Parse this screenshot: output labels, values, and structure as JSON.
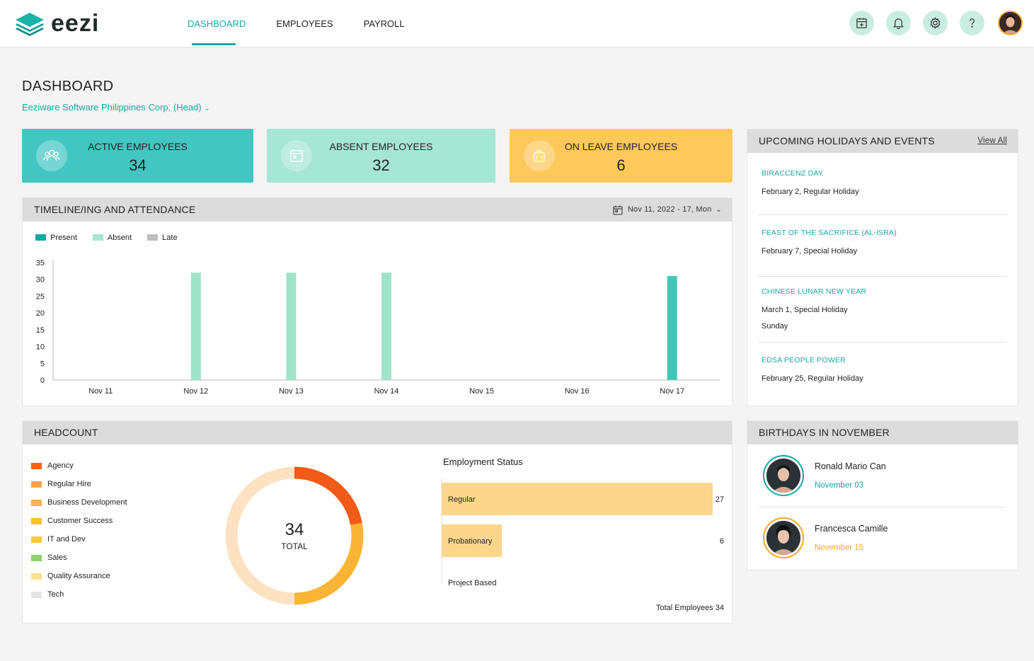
{
  "app": {
    "brand": "eezi"
  },
  "nav": {
    "items": [
      {
        "label": "DASHBOARD",
        "active": true
      },
      {
        "label": "EMPLOYEES",
        "active": false
      },
      {
        "label": "PAYROLL",
        "active": false
      }
    ]
  },
  "toolbar": {
    "icons": [
      "calendar-plus-icon",
      "bell-icon",
      "gear-icon",
      "help-icon",
      "user-avatar"
    ]
  },
  "page": {
    "title": "DASHBOARD",
    "company": "Eeziware Software Philippines Corp, (Head)"
  },
  "stats": [
    {
      "label": "ACTIVE EMPLOYEES",
      "value": "34",
      "color": "#43c6c2",
      "icon": "people-icon"
    },
    {
      "label": "ABSENT EMPLOYEES",
      "value": "32",
      "color": "#a6e6d4",
      "icon": "calendar-icon"
    },
    {
      "label": "ON LEAVE EMPLOYEES",
      "value": "6",
      "color": "#ffc85a",
      "icon": "luggage-icon"
    }
  ],
  "timeline": {
    "title": "TIMELINE/ING AND ATTENDANCE",
    "date_range": "Nov 11, 2022 - 17, Mon"
  },
  "chart_data": {
    "type": "bar",
    "categories": [
      "Nov 11",
      "Nov 12",
      "Nov 13",
      "Nov 14",
      "Nov 15",
      "Nov 16",
      "Nov 17"
    ],
    "series": [
      {
        "name": "Present",
        "color": "#43c6b8",
        "values": [
          0,
          0,
          0,
          0,
          0,
          0,
          31
        ]
      },
      {
        "name": "Absent",
        "color": "#9ee3ca",
        "values": [
          0,
          32,
          32,
          32,
          0,
          0,
          0
        ]
      },
      {
        "name": "Late",
        "color": "#bdbdbd",
        "values": [
          0,
          0,
          0,
          0,
          0,
          0,
          0
        ]
      }
    ],
    "yticks": [
      "35",
      "30",
      "25",
      "20",
      "15",
      "10",
      "5",
      "0"
    ],
    "ylim": [
      0,
      35
    ],
    "legend": "top-left"
  },
  "holidays": {
    "title": "UPCOMING HOLIDAYS AND EVENTS",
    "view_all": "View All",
    "items": [
      {
        "name": "BIRACCENZ DAY",
        "date": "February 2, Regular Holiday",
        "extra": ""
      },
      {
        "name": "FEAST OF THE SACRIFICE (AL-ISRA)",
        "date": "February 7, Special Holiday",
        "extra": ""
      },
      {
        "name": "CHINESE LUNAR NEW YEAR",
        "date": "March 1, Special Holiday",
        "extra": "Sunday"
      },
      {
        "name": "EDSA PEOPLE POWER",
        "date": "February 25, Regular Holiday",
        "extra": ""
      }
    ]
  },
  "headcount": {
    "title": "HEADCOUNT",
    "total_value": "34",
    "total_label": "TOTAL",
    "legend": [
      {
        "label": "Agency",
        "color": "#f4621e"
      },
      {
        "label": "Regular Hire",
        "color": "#f7a24a"
      },
      {
        "label": "Business Development",
        "color": "#f8b54a"
      },
      {
        "label": "Customer Success",
        "color": "#f9be3a"
      },
      {
        "label": "IT and Dev",
        "color": "#ffc93c"
      },
      {
        "label": "Sales",
        "color": "#8fd16c"
      },
      {
        "label": "Quality Assurance",
        "color": "#fbe08e"
      },
      {
        "label": "Tech",
        "color": "#e4e4e4"
      }
    ],
    "donut": [
      {
        "fraction": 0.22,
        "color": "#f25a17"
      },
      {
        "fraction": 0.28,
        "color": "#fbb536"
      },
      {
        "fraction": 0.5,
        "color": "#fde2c2"
      }
    ]
  },
  "employment_status": {
    "title": "Employment Status",
    "bars": [
      {
        "label": "Regular",
        "value": 27,
        "color": "#fcd68a"
      },
      {
        "label": "Probationary",
        "value": 6,
        "color": "#fcd68a"
      },
      {
        "label": "Project Based",
        "value": 0,
        "color": "#fcd68a"
      }
    ],
    "total_label": "Total Employees 34"
  },
  "birthdays": {
    "title": "BIRTHDAYS IN NOVEMBER",
    "items": [
      {
        "name": "Ronald Mario Can",
        "date": "November 03",
        "ring": "#17a8a4"
      },
      {
        "name": "Francesca Camille",
        "date": "November 15",
        "ring": "#f4a82a"
      }
    ]
  }
}
